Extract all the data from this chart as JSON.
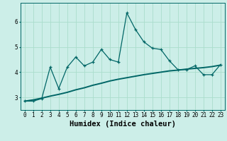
{
  "xlabel": "Humidex (Indice chaleur)",
  "background_color": "#cceee8",
  "line_color": "#006666",
  "grid_color": "#aaddcc",
  "x_values": [
    0,
    1,
    2,
    3,
    4,
    5,
    6,
    7,
    8,
    9,
    10,
    11,
    12,
    13,
    14,
    15,
    16,
    17,
    18,
    19,
    20,
    21,
    22,
    23
  ],
  "y_series1": [
    2.85,
    2.85,
    2.95,
    4.2,
    3.35,
    4.2,
    4.6,
    4.25,
    4.4,
    4.9,
    4.5,
    4.4,
    6.35,
    5.7,
    5.2,
    4.95,
    4.9,
    4.45,
    4.1,
    4.1,
    4.25,
    3.9,
    3.9,
    4.3
  ],
  "y_series2": [
    2.85,
    2.9,
    2.97,
    3.05,
    3.12,
    3.2,
    3.3,
    3.38,
    3.48,
    3.56,
    3.65,
    3.72,
    3.78,
    3.84,
    3.9,
    3.95,
    4.0,
    4.05,
    4.08,
    4.12,
    4.15,
    4.18,
    4.22,
    4.28
  ],
  "ylim": [
    2.5,
    6.75
  ],
  "xlim": [
    -0.5,
    23.5
  ],
  "yticks": [
    3,
    4,
    5,
    6
  ],
  "xticks": [
    0,
    1,
    2,
    3,
    4,
    5,
    6,
    7,
    8,
    9,
    10,
    11,
    12,
    13,
    14,
    15,
    16,
    17,
    18,
    19,
    20,
    21,
    22,
    23
  ],
  "tick_fontsize": 5.5,
  "xlabel_fontsize": 7.5
}
